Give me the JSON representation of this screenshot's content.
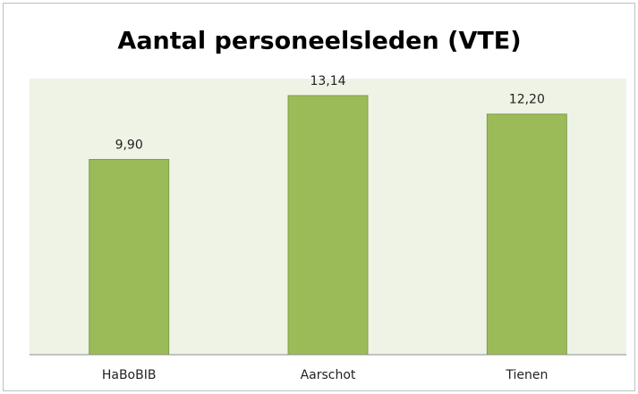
{
  "chart_data": {
    "type": "bar",
    "title": "Aantal personeelsleden (VTE)",
    "categories": [
      "HaBoBIB",
      "Aarschot",
      "Tienen"
    ],
    "values": [
      9.9,
      13.14,
      12.2
    ],
    "value_labels": [
      "9,90",
      "13,14",
      "12,20"
    ],
    "color": "#9bbb59",
    "ylim": [
      0,
      14
    ]
  }
}
